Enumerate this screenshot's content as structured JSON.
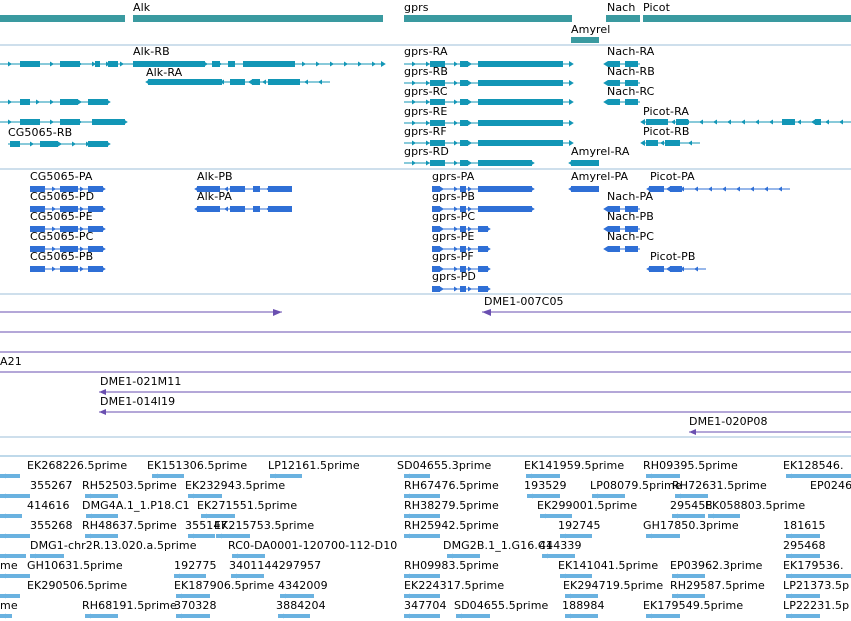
{
  "colors": {
    "gene": "#3a9aa0",
    "transcript": "#1296b6",
    "protein": "#2f6fd6",
    "clone": "#6a4fb0",
    "est": "#6ab2e0",
    "separator": "#7fb3d5"
  },
  "gene_track": {
    "labels": [
      "Alk",
      "gprs",
      "Nach",
      "Picot",
      "Amyrel"
    ]
  },
  "transcript_track": {
    "labels": [
      "Alk-RB",
      "Alk-RA",
      "CG5065-RB",
      "gprs-RA",
      "gprs-RB",
      "gprs-RC",
      "gprs-RE",
      "gprs-RF",
      "gprs-RD",
      "Nach-RA",
      "Nach-RB",
      "Nach-RC",
      "Picot-RA",
      "Picot-RB",
      "Amyrel-RA"
    ]
  },
  "protein_track": {
    "labels": [
      "CG5065-PA",
      "CG5065-PD",
      "CG5065-PE",
      "CG5065-PC",
      "CG5065-PB",
      "Alk-PB",
      "Alk-PA",
      "gprs-PA",
      "gprs-PB",
      "gprs-PC",
      "gprs-PE",
      "gprs-PF",
      "gprs-PD",
      "Amyrel-PA",
      "Nach-PA",
      "Nach-PB",
      "Nach-PC",
      "Picot-PA",
      "Picot-PB"
    ]
  },
  "clone_track": {
    "labels": [
      "DME1-007C05",
      "A21",
      "DME1-021M11",
      "DME1-014I19",
      "DME1-020P08"
    ]
  },
  "est_track": {
    "rows": [
      [
        "EK268226.5prime",
        "EK151306.5prime",
        "LP12161.5prime",
        "SD04655.3prime",
        "EK141959.5prime",
        "RH09395.5prime",
        "EK128546."
      ],
      [
        "355267",
        "RH52503.5prime",
        "EK232943.5prime",
        "RH67476.5prime",
        "193529",
        "LP08079.5prime",
        "RH72631.5prime",
        "EP0246"
      ],
      [
        "414616",
        "DMG4A.1_1.P18.C1",
        "EK271551.5prime",
        "RH38279.5prime",
        "EK299001.5prime",
        "295458",
        "EK058803.5prime"
      ],
      [
        "355268",
        "RH48637.5prime",
        "355147",
        "EK215753.5prime",
        "RH25942.5prime",
        "192745",
        "GH17850.3prime",
        "181615"
      ],
      [
        "DMG1-chr2R.13.020.a.5prime",
        "RC0-DA0001-120700-112-D10",
        "DMG2B.1_1.G16.C1",
        "444339",
        "295468"
      ],
      [
        "me",
        "GH10631.5prime",
        "192775",
        "3401144297957",
        "RH09983.5prime",
        "EK141041.5prime",
        "EP03962.3prime",
        "EK179536."
      ],
      [
        "EK290506.5prime",
        "EK187906.5prime",
        "4342009",
        "EK224317.5prime",
        "EK294719.5prime",
        "RH29587.5prime",
        "LP21373.5p"
      ],
      [
        "me",
        "RH68191.5prime",
        "370328",
        "3884204",
        "347704",
        "SD04655.5prime",
        "188984",
        "EK179549.5prime",
        "LP22231.5p"
      ]
    ]
  }
}
